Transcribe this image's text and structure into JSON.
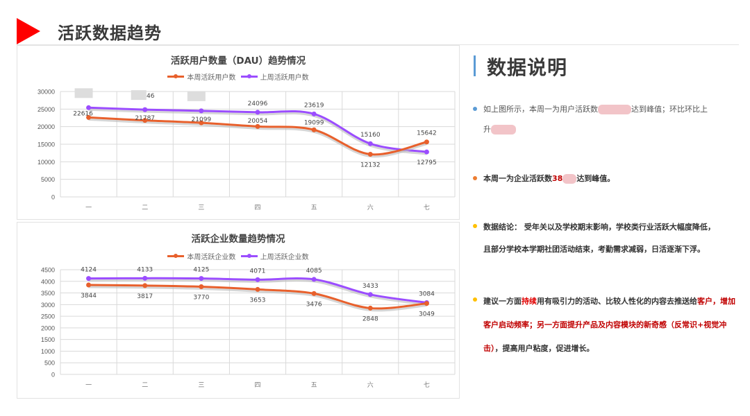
{
  "header": {
    "title": "活跃数据趋势",
    "accent_color": "#ff0000"
  },
  "chart_data": [
    {
      "type": "line",
      "title": "活跃用户数量（DAU）趋势情况",
      "categories": [
        "一",
        "二",
        "三",
        "四",
        "五",
        "六",
        "七"
      ],
      "series": [
        {
          "name": "本周活跃用户数",
          "color": "#e8602c",
          "values": [
            22616,
            21787,
            21099,
            20054,
            19099,
            12132,
            15642
          ]
        },
        {
          "name": "上周活跃用户数",
          "color": "#9b4dff",
          "values": [
            25400,
            24846,
            24500,
            24096,
            23619,
            15160,
            12795
          ]
        }
      ],
      "data_labels_above": [
        "▇▇",
        "▇46",
        "▇▇",
        "24096",
        "23619",
        "15160",
        "15642"
      ],
      "data_labels_below": [
        "22616",
        "21787",
        "21099",
        "20054",
        "19099",
        "12132",
        "12795"
      ],
      "yticks": [
        0,
        5000,
        10000,
        15000,
        20000,
        25000,
        30000
      ],
      "ylim": [
        0,
        30000
      ],
      "xlabel": "",
      "ylabel": "",
      "grid": true,
      "legend_position": "top"
    },
    {
      "type": "line",
      "title": "活跃企业数量趋势情况",
      "categories": [
        "一",
        "二",
        "三",
        "四",
        "五",
        "六",
        "七"
      ],
      "series": [
        {
          "name": "本周活跃企业数",
          "color": "#e8602c",
          "values": [
            3844,
            3817,
            3770,
            3653,
            3476,
            2848,
            3049
          ]
        },
        {
          "name": "上周活跃企业数",
          "color": "#9b4dff",
          "values": [
            4124,
            4133,
            4125,
            4071,
            4085,
            3433,
            3084
          ]
        }
      ],
      "yticks": [
        0,
        500,
        1000,
        1500,
        2000,
        2500,
        3000,
        3500,
        4000,
        4500
      ],
      "ylim": [
        0,
        4500
      ],
      "xlabel": "",
      "ylabel": "",
      "grid": true,
      "legend_position": "top"
    }
  ],
  "panel": {
    "title": "数据说明",
    "bar_color": "#5b9bd5",
    "bullets": [
      {
        "color": "#5b9bd5",
        "text_a": "如上图所示，本周一为用户活跃数",
        "text_b": "达到峰值；环比环比上",
        "text_c": "升"
      },
      {
        "color": "#ed7d31",
        "text_a": "本周一为企业活跃数",
        "highlight": "38",
        "text_b": "达到峰值。"
      },
      {
        "color": "#ffc000",
        "label": "数据结论：",
        "text_a": "受年关以及学校期末影响，学校类行业活跃大幅度降低，",
        "text_b": "且部分学校本学期社团活动结束，考勤需求减弱，日活逐渐下浮。"
      },
      {
        "color": "#ffc000",
        "seg1": "建议一方面",
        "seg2": "持续",
        "seg3": "用有吸引力的活动、比较人性化的内容去推送给",
        "seg4": "客户，增加客户启动频率；另一方面提升产品及内容模块的新奇感（反常识+视觉冲击）",
        "seg5": "，提高用户粘度，促进增长。"
      }
    ]
  }
}
